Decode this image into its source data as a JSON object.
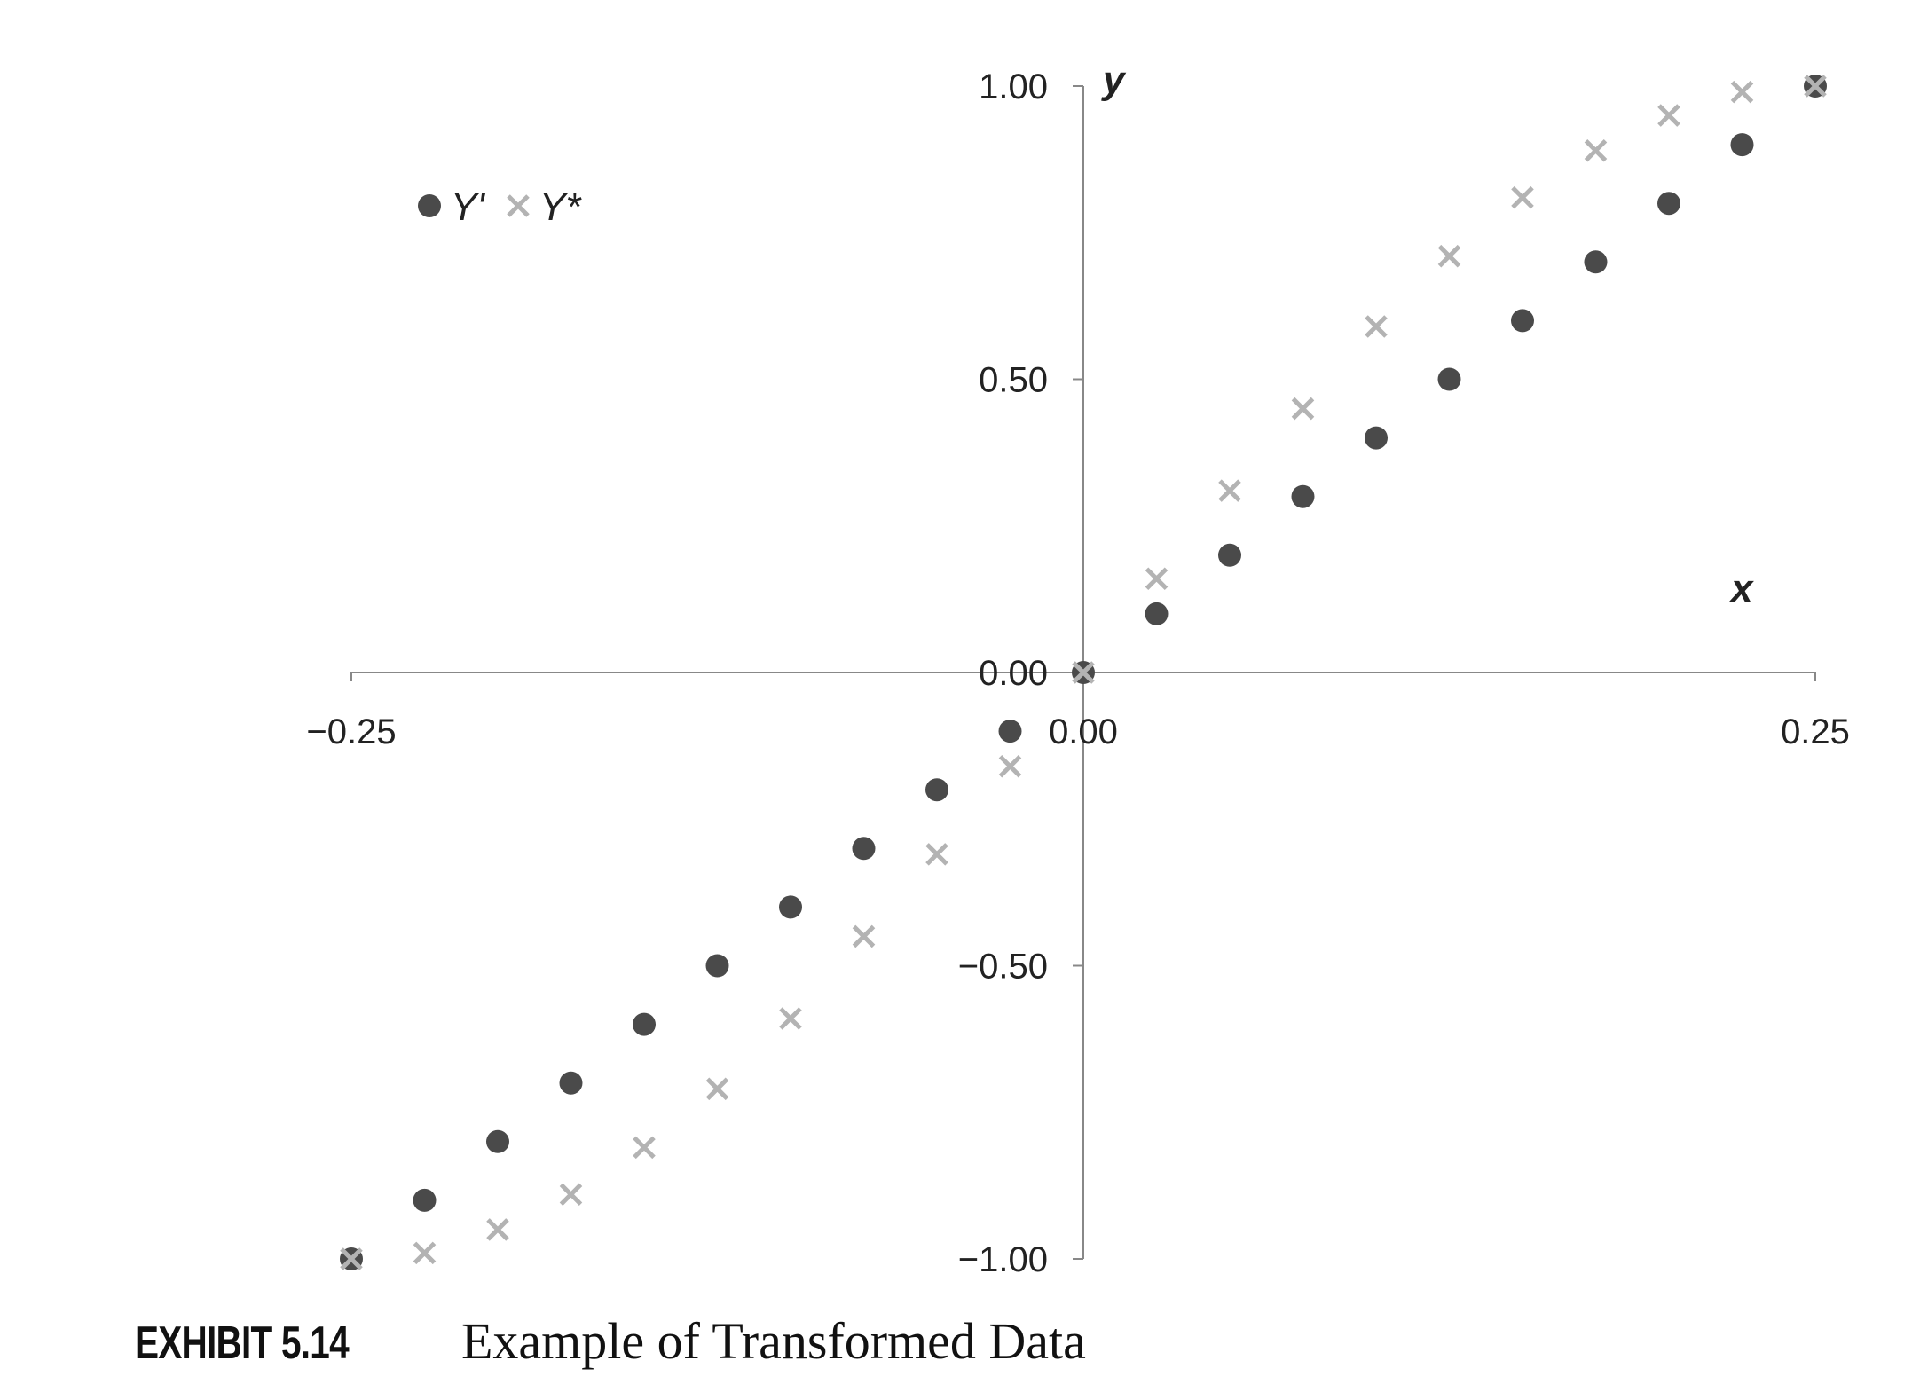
{
  "chart_data": {
    "type": "scatter",
    "xlabel": "x",
    "ylabel": "y",
    "xlim": [
      -0.25,
      0.25
    ],
    "ylim": [
      -1.0,
      1.0
    ],
    "x_ticks": [
      -0.25,
      0.0,
      0.25
    ],
    "x_tick_labels": [
      "−0.25",
      "0.00",
      "0.25"
    ],
    "y_ticks": [
      -1.0,
      -0.5,
      0.0,
      0.5,
      1.0
    ],
    "y_tick_labels": [
      "−1.00",
      "−0.50",
      "0.00",
      "0.50",
      "1.00"
    ],
    "legend_position": "top-left",
    "grid": false,
    "series": [
      {
        "name": "Y'",
        "marker": "circle",
        "color": "#4a4a4a",
        "x": [
          -0.25,
          -0.225,
          -0.2,
          -0.175,
          -0.15,
          -0.125,
          -0.1,
          -0.075,
          -0.05,
          -0.025,
          0.0,
          0.025,
          0.05,
          0.075,
          0.1,
          0.125,
          0.15,
          0.175,
          0.2,
          0.225,
          0.25
        ],
        "y": [
          -1.0,
          -0.9,
          -0.8,
          -0.7,
          -0.6,
          -0.5,
          -0.4,
          -0.3,
          -0.2,
          -0.1,
          0.0,
          0.1,
          0.2,
          0.3,
          0.4,
          0.5,
          0.6,
          0.7,
          0.8,
          0.9,
          1.0
        ]
      },
      {
        "name": "Y*",
        "marker": "x",
        "color": "#b3b3b3",
        "x": [
          -0.25,
          -0.225,
          -0.2,
          -0.175,
          -0.15,
          -0.125,
          -0.1,
          -0.075,
          -0.05,
          -0.025,
          0.0,
          0.025,
          0.05,
          0.075,
          0.1,
          0.125,
          0.15,
          0.175,
          0.2,
          0.225,
          0.25
        ],
        "y": [
          -1.0,
          -0.99,
          -0.95,
          -0.89,
          -0.81,
          -0.71,
          -0.59,
          -0.45,
          -0.31,
          -0.16,
          0.0,
          0.16,
          0.31,
          0.45,
          0.59,
          0.71,
          0.81,
          0.89,
          0.95,
          0.99,
          1.0
        ]
      }
    ]
  },
  "caption": {
    "label": "EXHIBIT 5.14",
    "text": "Example of Transformed Data"
  }
}
